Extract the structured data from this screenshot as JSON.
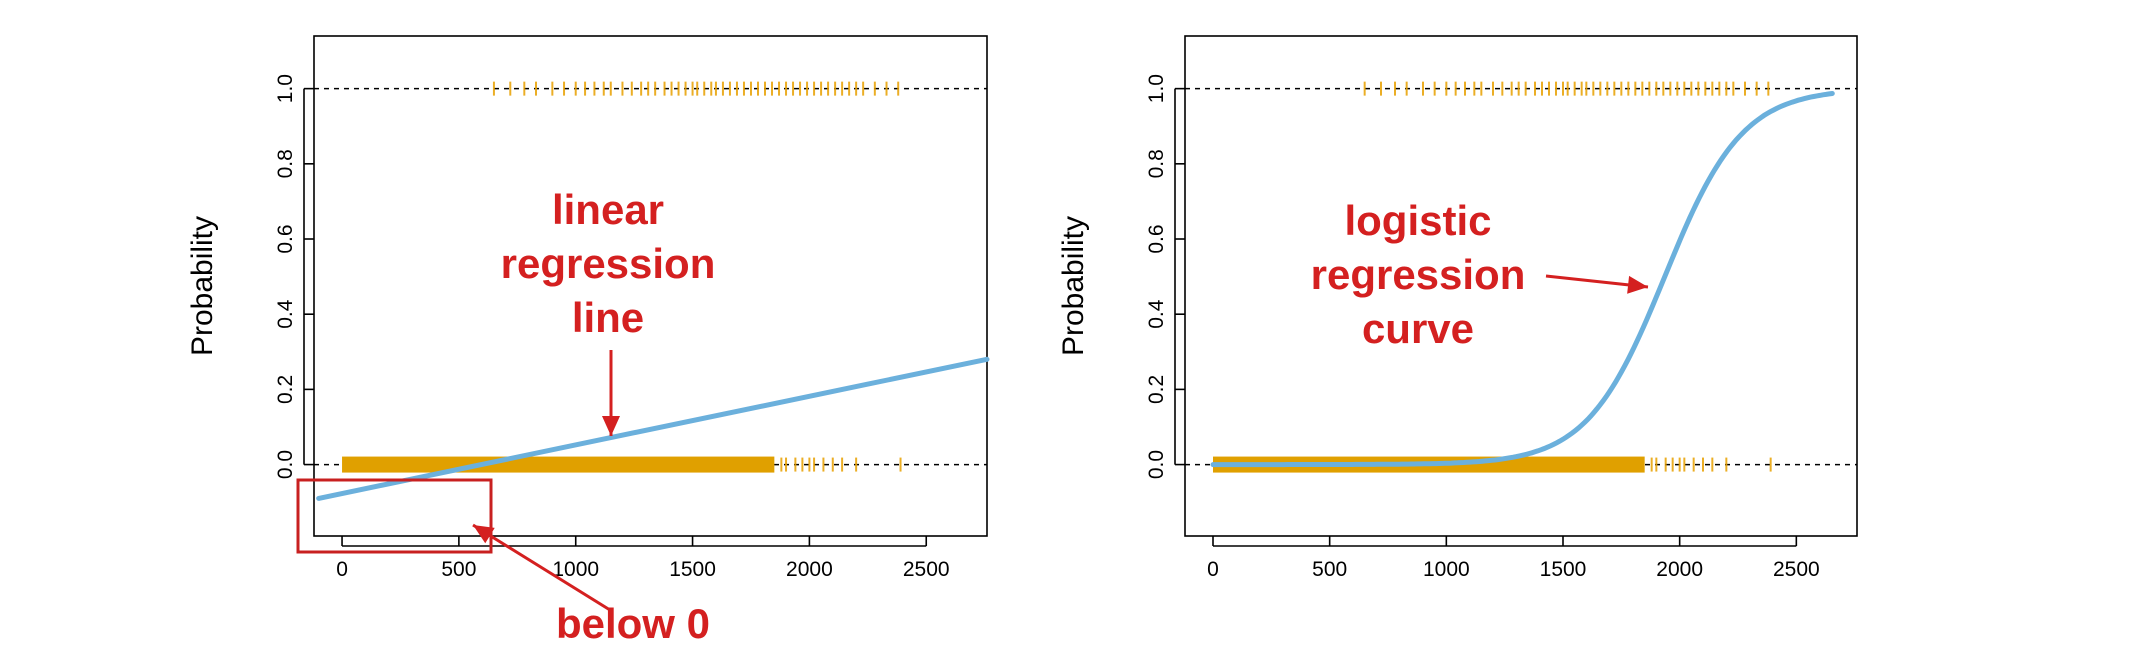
{
  "chart_data": [
    {
      "type": "line",
      "xlabel": "",
      "ylabel": "Probability",
      "xlim": [
        -120,
        2760
      ],
      "ylim": [
        -0.19,
        1.14
      ],
      "x_ticks": [
        "0",
        "500",
        "1000",
        "1500",
        "2000",
        "2500"
      ],
      "x_tick_values": [
        0,
        500,
        1000,
        1500,
        2000,
        2500
      ],
      "y_ticks": [
        "0.0",
        "0.2",
        "0.4",
        "0.6",
        "0.8",
        "1.0"
      ],
      "y_tick_values": [
        0.0,
        0.2,
        0.4,
        0.6,
        0.8,
        1.0
      ],
      "reference_lines": [
        0.0,
        1.0
      ],
      "series": [
        {
          "points": [
            {
              "x": -100,
              "y": -0.09
            },
            {
              "x": 2760,
              "y": 0.28
            }
          ]
        }
      ],
      "observations_y1": [
        650,
        720,
        780,
        830,
        900,
        950,
        1000,
        1040,
        1080,
        1120,
        1150,
        1200,
        1240,
        1280,
        1310,
        1340,
        1380,
        1410,
        1440,
        1470,
        1500,
        1520,
        1550,
        1580,
        1600,
        1630,
        1660,
        1690,
        1720,
        1750,
        1780,
        1810,
        1840,
        1870,
        1900,
        1930,
        1960,
        1990,
        2020,
        2050,
        2080,
        2110,
        2140,
        2170,
        2200,
        2230,
        2280,
        2330,
        2380
      ],
      "observations_y0_band": [
        0,
        1850
      ],
      "observations_y0_sparse": [
        1880,
        1900,
        1940,
        1970,
        2000,
        2020,
        2060,
        2100,
        2140,
        2200,
        2390
      ],
      "annotations": [
        {
          "lines": [
            "linear",
            "regression",
            "line"
          ]
        },
        {
          "lines": [
            "below 0"
          ]
        }
      ]
    },
    {
      "type": "line",
      "xlabel": "",
      "ylabel": "Probability",
      "xlim": [
        -120,
        2760
      ],
      "ylim": [
        -0.19,
        1.14
      ],
      "x_ticks": [
        "0",
        "500",
        "1000",
        "1500",
        "2000",
        "2500"
      ],
      "x_tick_values": [
        0,
        500,
        1000,
        1500,
        2000,
        2500
      ],
      "y_ticks": [
        "0.0",
        "0.2",
        "0.4",
        "0.6",
        "0.8",
        "1.0"
      ],
      "y_tick_values": [
        0.0,
        0.2,
        0.4,
        0.6,
        0.8,
        1.0
      ],
      "reference_lines": [
        0.0,
        1.0
      ],
      "series": [
        {
          "logistic": {
            "midpoint": 1936,
            "scale": 166
          },
          "x_range": [
            0,
            2654
          ]
        }
      ],
      "observations_y1": [
        650,
        720,
        780,
        830,
        900,
        950,
        1000,
        1040,
        1080,
        1120,
        1150,
        1200,
        1240,
        1280,
        1310,
        1340,
        1380,
        1410,
        1440,
        1470,
        1500,
        1520,
        1550,
        1580,
        1600,
        1630,
        1660,
        1690,
        1720,
        1750,
        1780,
        1810,
        1840,
        1870,
        1900,
        1930,
        1960,
        1990,
        2020,
        2050,
        2080,
        2110,
        2140,
        2170,
        2200,
        2230,
        2280,
        2330,
        2380
      ],
      "observations_y0_band": [
        0,
        1850
      ],
      "observations_y0_sparse": [
        1880,
        1900,
        1940,
        1970,
        2000,
        2020,
        2060,
        2100,
        2140,
        2200,
        2390
      ],
      "annotations": [
        {
          "lines": [
            "logistic",
            "regression",
            "curve"
          ]
        }
      ]
    }
  ],
  "colors": {
    "fit_line": "#6bb0dc",
    "observations": "#e0a000",
    "annotation": "#d42020"
  }
}
